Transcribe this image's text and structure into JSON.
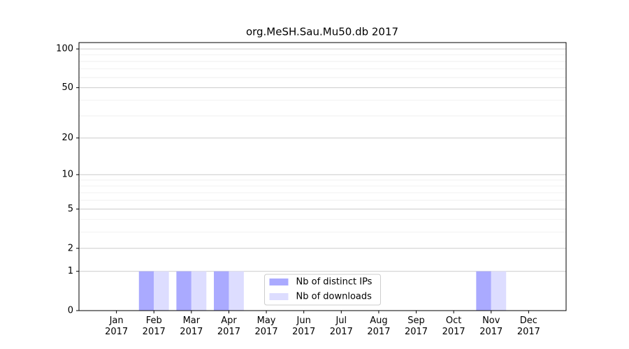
{
  "chart_data": {
    "type": "bar",
    "title": "org.MeSH.Sau.Mu50.db 2017",
    "categories": [
      "Jan\n2017",
      "Feb\n2017",
      "Mar\n2017",
      "Apr\n2017",
      "May\n2017",
      "Jun\n2017",
      "Jul\n2017",
      "Aug\n2017",
      "Sep\n2017",
      "Oct\n2017",
      "Nov\n2017",
      "Dec\n2017"
    ],
    "series": [
      {
        "name": "Nb of distinct IPs",
        "color": "#aaaaff",
        "values": [
          0,
          1,
          1,
          1,
          0,
          0,
          0,
          0,
          0,
          0,
          1,
          0
        ]
      },
      {
        "name": "Nb of downloads",
        "color": "#ddddff",
        "values": [
          0,
          1,
          1,
          1,
          0,
          0,
          0,
          0,
          0,
          0,
          1,
          0
        ]
      }
    ],
    "yscale": "log1p",
    "ylim": [
      0,
      112
    ],
    "yticks": [
      0,
      1,
      2,
      5,
      10,
      20,
      50,
      100
    ],
    "minor_yticks": [
      3,
      4,
      6,
      7,
      8,
      9,
      30,
      40,
      60,
      70,
      80,
      90
    ],
    "grid": true,
    "legend": "lower center"
  }
}
